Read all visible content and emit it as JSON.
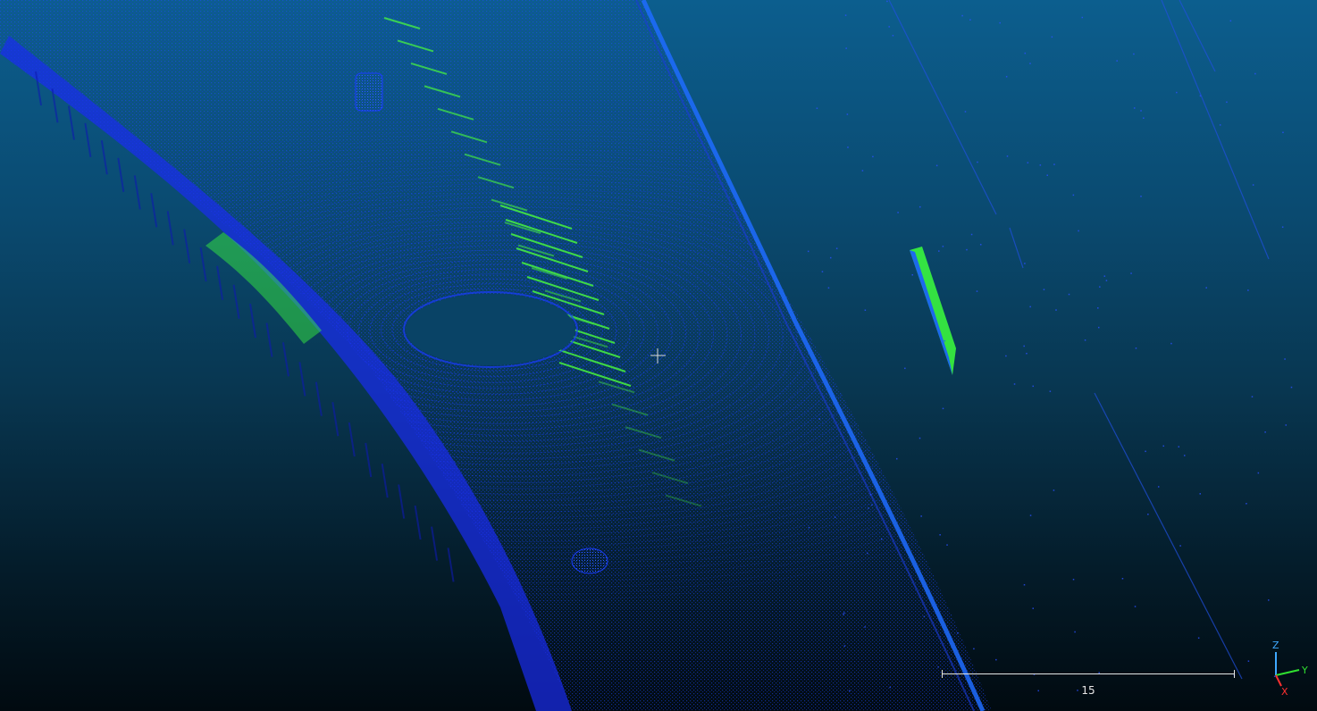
{
  "viewer": {
    "scale_bar": {
      "label": "15"
    },
    "axes": {
      "z_label": "Z",
      "y_label": "Y",
      "x_label": "X",
      "colors": {
        "x": "#ff3030",
        "y": "#30e030",
        "z": "#3fa9ff"
      }
    },
    "colors": {
      "background_top": "#0c5e8e",
      "background_bottom": "#010a10",
      "points_low": "#1030e0",
      "points_mid": "#1a6cff",
      "points_high": "#40ff40"
    }
  }
}
